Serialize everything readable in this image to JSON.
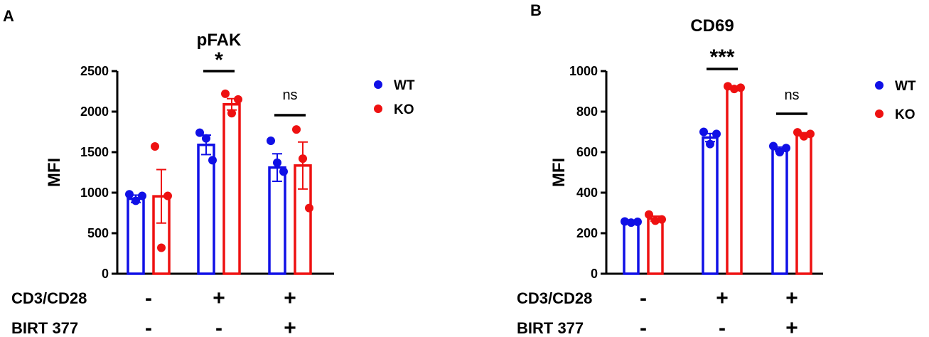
{
  "colors": {
    "wt": "#1010e6",
    "ko": "#ee1111",
    "axis": "#000000"
  },
  "chart_data": [
    {
      "type": "bar",
      "panel_label": "A",
      "title": "pFAK",
      "ylabel": "MFI",
      "ylim": [
        0,
        2500
      ],
      "yticks": [
        "0",
        "500",
        "1000",
        "1500",
        "2000",
        "2500"
      ],
      "legend": [
        {
          "name": "WT",
          "color": "#1010e6"
        },
        {
          "name": "KO",
          "color": "#ee1111"
        }
      ],
      "legend_position": "right",
      "row_labels": [
        "CD3/CD28",
        "BIRT 377"
      ],
      "conditions": [
        {
          "cd3cd28": "-",
          "birt377": "-",
          "significance": ""
        },
        {
          "cd3cd28": "+",
          "birt377": "-",
          "significance": "*"
        },
        {
          "cd3cd28": "+",
          "birt377": "+",
          "significance": "ns"
        }
      ],
      "series": [
        {
          "name": "WT",
          "values": [
            925,
            1590,
            1310
          ],
          "errors": [
            45,
            120,
            170
          ],
          "points": [
            [
              980,
              900,
              960
            ],
            [
              1740,
              1670,
              1400
            ],
            [
              1640,
              1370,
              1260
            ]
          ]
        },
        {
          "name": "KO",
          "values": [
            955,
            2090,
            1335
          ],
          "errors": [
            330,
            70,
            290
          ],
          "points": [
            [
              1570,
              320,
              960
            ],
            [
              2220,
              1980,
              2150
            ],
            [
              1780,
              1420,
              810
            ]
          ]
        }
      ]
    },
    {
      "type": "bar",
      "panel_label": "B",
      "title": "CD69",
      "ylabel": "MFI",
      "ylim": [
        0,
        1000
      ],
      "yticks": [
        "0",
        "200",
        "400",
        "600",
        "800",
        "1000"
      ],
      "legend": [
        {
          "name": "WT",
          "color": "#1010e6"
        },
        {
          "name": "KO",
          "color": "#ee1111"
        }
      ],
      "legend_position": "right",
      "row_labels": [
        "CD3/CD28",
        "BIRT 377"
      ],
      "conditions": [
        {
          "cd3cd28": "-",
          "birt377": "-",
          "significance": ""
        },
        {
          "cd3cd28": "+",
          "birt377": "-",
          "significance": "***"
        },
        {
          "cd3cd28": "+",
          "birt377": "+",
          "significance": "ns"
        }
      ],
      "series": [
        {
          "name": "WT",
          "values": [
            255,
            672,
            615
          ],
          "errors": [
            5,
            20,
            10
          ],
          "points": [
            [
              258,
              252,
              256
            ],
            [
              700,
              640,
              690
            ],
            [
              630,
              600,
              620
            ]
          ]
        },
        {
          "name": "KO",
          "values": [
            272,
            918,
            688
          ],
          "errors": [
            12,
            5,
            8
          ],
          "points": [
            [
              292,
              262,
              268
            ],
            [
              925,
              912,
              918
            ],
            [
              698,
              678,
              690
            ]
          ]
        }
      ]
    }
  ]
}
